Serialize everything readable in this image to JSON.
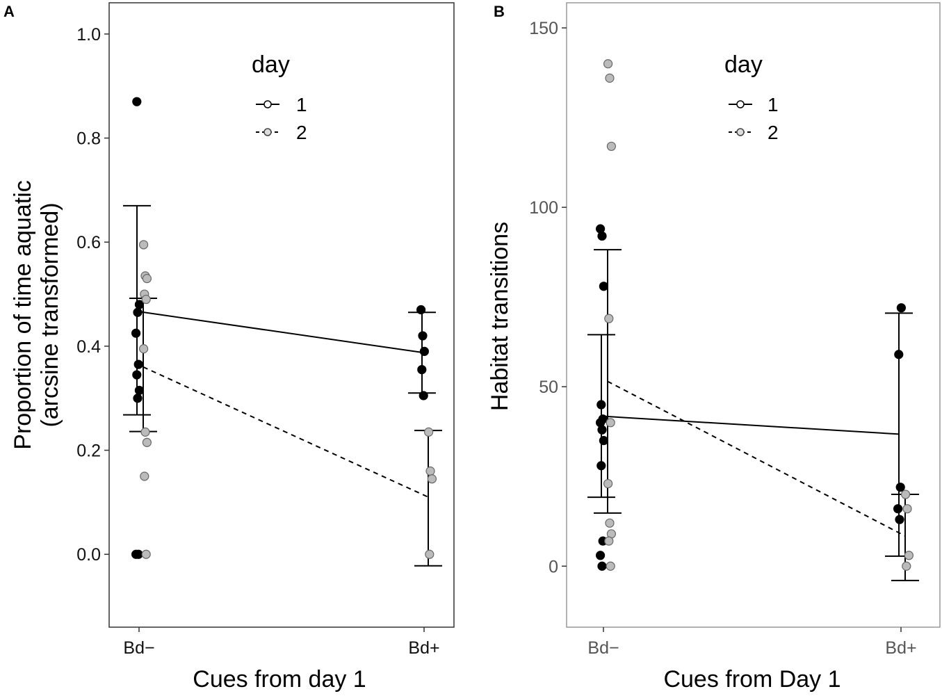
{
  "chart_data": [
    {
      "panel": "A",
      "type": "scatter",
      "xlabel": "Cues from day 1",
      "ylabel": [
        "Proportion of time aquatic",
        "(arcsine transformed)"
      ],
      "categories": [
        "Bd−",
        "Bd+"
      ],
      "ylim": [
        -0.14,
        1.06
      ],
      "yticks": [
        0.0,
        0.2,
        0.4,
        0.6,
        0.8,
        1.0
      ],
      "ytick_labels": [
        "0.0",
        "0.2",
        "0.4",
        "0.6",
        "0.8",
        "1.0"
      ],
      "grid": false,
      "legend": {
        "title": "day",
        "position": "top-center",
        "entries": [
          "1",
          "2"
        ]
      },
      "series": [
        {
          "name": "1",
          "line": "solid",
          "point_color": "#000000",
          "means": [
            0.467,
            0.388
          ],
          "error_bars": [
            [
              0.268,
              0.67
            ],
            [
              0.31,
              0.465
            ]
          ],
          "points": [
            [
              0.0,
              0.0
            ],
            [
              0.0,
              0.3
            ],
            [
              0.0,
              0.315
            ],
            [
              0.0,
              0.345
            ],
            [
              0.0,
              0.365
            ],
            [
              0.0,
              0.425
            ],
            [
              0.0,
              0.465
            ],
            [
              0.0,
              0.48
            ],
            [
              0.0,
              0.87
            ],
            [
              0.0,
              0.0
            ],
            [
              1.0,
              0.47
            ],
            [
              1.0,
              0.42
            ],
            [
              1.0,
              0.39
            ],
            [
              1.0,
              0.355
            ],
            [
              1.0,
              0.305
            ]
          ]
        },
        {
          "name": "2",
          "line": "dashed",
          "point_color": "#bbbbbb",
          "means": [
            0.36,
            0.11
          ],
          "error_bars": [
            [
              0.236,
              0.492
            ],
            [
              -0.022,
              0.238
            ]
          ],
          "points": [
            [
              0.0,
              0.595
            ],
            [
              0.0,
              0.535
            ],
            [
              0.0,
              0.53
            ],
            [
              0.0,
              0.5
            ],
            [
              0.0,
              0.49
            ],
            [
              0.0,
              0.395
            ],
            [
              0.0,
              0.235
            ],
            [
              0.0,
              0.215
            ],
            [
              0.0,
              0.15
            ],
            [
              0.0,
              0.0
            ],
            [
              1.0,
              0.235
            ],
            [
              1.0,
              0.16
            ],
            [
              1.0,
              0.145
            ],
            [
              1.0,
              0.0
            ]
          ]
        }
      ]
    },
    {
      "panel": "B",
      "type": "scatter",
      "xlabel": "Cues from Day 1",
      "ylabel": [
        "Habitat transitions"
      ],
      "categories": [
        "Bd−",
        "Bd+"
      ],
      "ylim": [
        -17,
        157
      ],
      "yticks": [
        0,
        50,
        100,
        150
      ],
      "ytick_labels": [
        "0",
        "50",
        "100",
        "150"
      ],
      "grid": false,
      "legend": {
        "title": "day",
        "position": "top-center",
        "entries": [
          "1",
          "2"
        ]
      },
      "series": [
        {
          "name": "1",
          "line": "solid",
          "point_color": "#000000",
          "means": [
            41.8,
            36.8
          ],
          "error_bars": [
            [
              19.2,
              64.5
            ],
            [
              2.8,
              70.5
            ]
          ],
          "points": [
            [
              0.0,
              94
            ],
            [
              0.0,
              92
            ],
            [
              0.0,
              78
            ],
            [
              0.0,
              45
            ],
            [
              0.0,
              41
            ],
            [
              0.0,
              40
            ],
            [
              0.0,
              38
            ],
            [
              0.0,
              35
            ],
            [
              0.0,
              28
            ],
            [
              0.0,
              7
            ],
            [
              0.0,
              3
            ],
            [
              0.0,
              0
            ],
            [
              1.0,
              72
            ],
            [
              1.0,
              59
            ],
            [
              1.0,
              22
            ],
            [
              1.0,
              16
            ],
            [
              1.0,
              13
            ]
          ]
        },
        {
          "name": "2",
          "line": "dashed",
          "point_color": "#bbbbbb",
          "means": [
            51.5,
            8.4
          ],
          "error_bars": [
            [
              14.8,
              88.2
            ],
            [
              -4.0,
              20.0
            ]
          ],
          "points": [
            [
              0.0,
              140
            ],
            [
              0.0,
              136
            ],
            [
              0.0,
              117
            ],
            [
              0.0,
              69
            ],
            [
              0.0,
              40
            ],
            [
              0.0,
              23
            ],
            [
              0.0,
              12
            ],
            [
              0.0,
              9
            ],
            [
              0.0,
              7
            ],
            [
              0.0,
              0
            ],
            [
              1.0,
              20
            ],
            [
              1.0,
              16
            ],
            [
              1.0,
              3
            ],
            [
              1.0,
              0
            ]
          ]
        }
      ]
    }
  ]
}
